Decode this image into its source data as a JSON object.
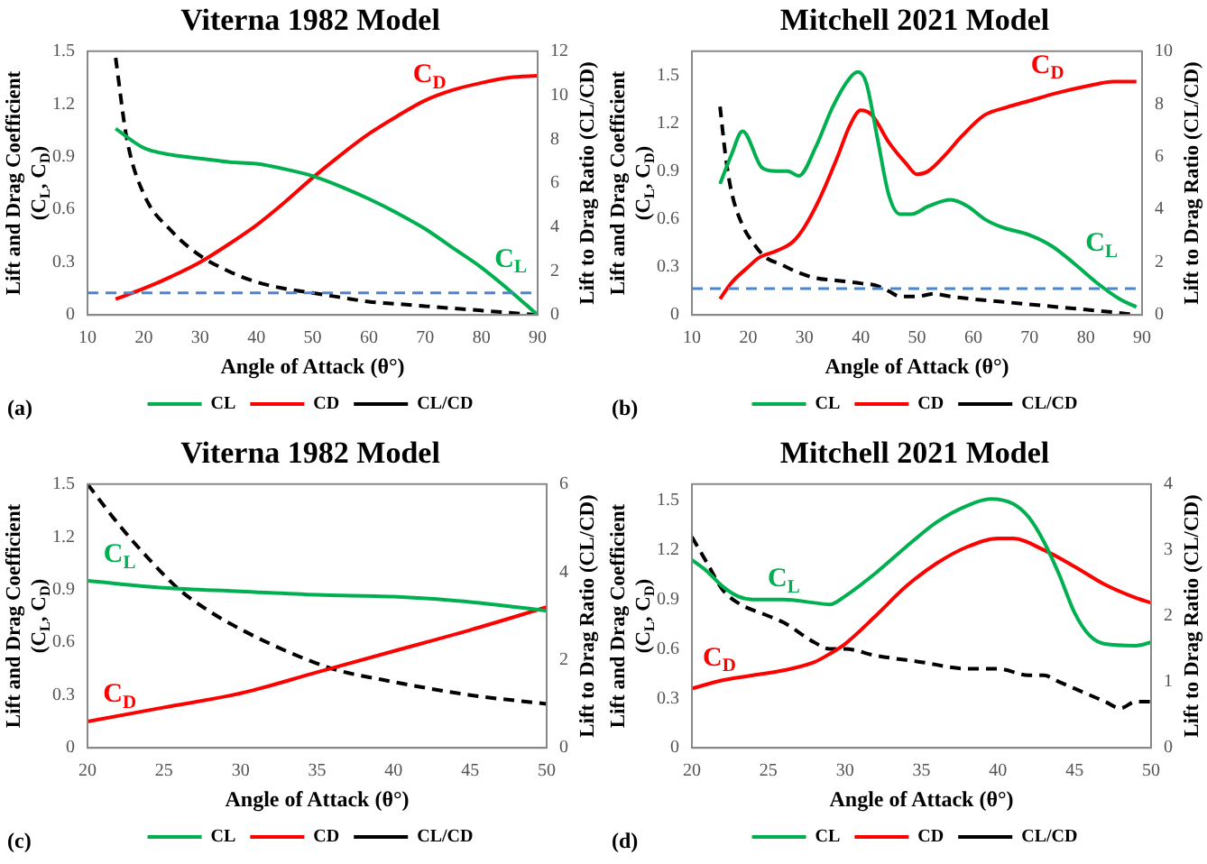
{
  "chart_data": [
    {
      "type": "line",
      "title": "Viterna 1982 Model",
      "xlabel": "Angle of Attack (θ°)",
      "ylabel": "Lift and Drag Coefficient\n(C$_{L}$, C$_{D}$)",
      "y2label": "Lift to Drag Ratio (CL/CD)",
      "xlim": [
        10,
        90
      ],
      "xticks": [
        10,
        20,
        30,
        40,
        50,
        60,
        70,
        80,
        90
      ],
      "ylim": [
        0,
        1.5
      ],
      "yticks": [
        0,
        0.3,
        0.6,
        0.9,
        1.2,
        1.5
      ],
      "y2lim": [
        0,
        12
      ],
      "y2ticks": [
        0,
        2,
        4,
        6,
        8,
        10,
        12
      ],
      "legend": "bottom",
      "marker": "none",
      "ref_lines": [
        {
          "axis": "y2",
          "value": 1,
          "color": "#4a86d0",
          "line_style": "dashed"
        }
      ],
      "annotations": [
        "C$_{L}$",
        "C$_{D}$",
        "(a)"
      ],
      "series": [
        {
          "name": "CL",
          "color": "#00b050",
          "line_style": "solid",
          "x": [
            15,
            20,
            25,
            30,
            35,
            40,
            45,
            50,
            55,
            60,
            65,
            70,
            75,
            80,
            85,
            90
          ],
          "values": [
            1.06,
            0.95,
            0.91,
            0.89,
            0.87,
            0.86,
            0.83,
            0.79,
            0.73,
            0.66,
            0.58,
            0.49,
            0.38,
            0.27,
            0.14,
            0
          ]
        },
        {
          "name": "CD",
          "color": "#ff0000",
          "line_style": "solid",
          "x": [
            15,
            20,
            25,
            30,
            35,
            40,
            45,
            50,
            55,
            60,
            65,
            70,
            75,
            80,
            85,
            90
          ],
          "values": [
            0.09,
            0.15,
            0.22,
            0.3,
            0.4,
            0.51,
            0.64,
            0.78,
            0.91,
            1.03,
            1.13,
            1.22,
            1.28,
            1.32,
            1.35,
            1.36
          ]
        },
        {
          "name": "CL/CD",
          "color": "#000000",
          "line_style": "dashed",
          "axis": "y2",
          "x": [
            15,
            17,
            20,
            25,
            30,
            35,
            40,
            45,
            50,
            55,
            60,
            65,
            70,
            75,
            80,
            85,
            90
          ],
          "values": [
            11.7,
            8,
            5.5,
            3.8,
            2.7,
            2,
            1.5,
            1.2,
            1,
            0.8,
            0.6,
            0.5,
            0.4,
            0.3,
            0.2,
            0.1,
            0
          ]
        }
      ]
    },
    {
      "type": "line",
      "title": "Mitchell 2021 Model",
      "xlabel": "Angle of Attack (θ°)",
      "ylabel": "Lift and Drag Coefficient\n(C$_{L}$, C$_{D}$)",
      "y2label": "Lift to Drag Ratio (CL/CD)",
      "xlim": [
        10,
        90
      ],
      "xticks": [
        10,
        20,
        30,
        40,
        50,
        60,
        70,
        80,
        90
      ],
      "ylim": [
        0,
        1.65
      ],
      "yticks": [
        0,
        0.3,
        0.6,
        0.9,
        1.2,
        1.5
      ],
      "y2lim": [
        0,
        10
      ],
      "y2ticks": [
        0,
        2,
        4,
        6,
        8,
        10
      ],
      "legend": "bottom",
      "marker": "none",
      "ref_lines": [
        {
          "axis": "y2",
          "value": 1,
          "color": "#4a86d0",
          "line_style": "dashed"
        }
      ],
      "annotations": [
        "C$_{L}$",
        "C$_{D}$",
        "(b)"
      ],
      "series": [
        {
          "name": "CL",
          "color": "#00b050",
          "line_style": "solid",
          "x": [
            15,
            17,
            19,
            22.5,
            25,
            27,
            29,
            32,
            35,
            38,
            39.5,
            41,
            43,
            45,
            47,
            49,
            52,
            56,
            59,
            62,
            65,
            70,
            74,
            78,
            82,
            86,
            89
          ],
          "values": [
            0.82,
            1.0,
            1.15,
            0.92,
            0.9,
            0.9,
            0.87,
            1.05,
            1.3,
            1.48,
            1.52,
            1.45,
            1.1,
            0.75,
            0.63,
            0.63,
            0.68,
            0.72,
            0.68,
            0.6,
            0.55,
            0.5,
            0.43,
            0.32,
            0.2,
            0.1,
            0.05
          ]
        },
        {
          "name": "CD",
          "color": "#ff0000",
          "line_style": "solid",
          "x": [
            15,
            17,
            20,
            22,
            25,
            28,
            30,
            33,
            36,
            38,
            40,
            42,
            45,
            48,
            50,
            52,
            55,
            58,
            62,
            66,
            70,
            75,
            80,
            85,
            89
          ],
          "values": [
            0.1,
            0.2,
            0.3,
            0.36,
            0.4,
            0.46,
            0.55,
            0.75,
            1.0,
            1.18,
            1.28,
            1.25,
            1.08,
            0.95,
            0.88,
            0.9,
            1.0,
            1.12,
            1.25,
            1.3,
            1.34,
            1.39,
            1.43,
            1.46,
            1.46
          ]
        },
        {
          "name": "CL/CD",
          "color": "#000000",
          "line_style": "dashed",
          "axis": "y2",
          "x": [
            15,
            16,
            17,
            19,
            21,
            23,
            26,
            29,
            32,
            36,
            40,
            43,
            45,
            47,
            50,
            53,
            56,
            60,
            65,
            70,
            75,
            80,
            85,
            89
          ],
          "values": [
            7.9,
            6,
            4.7,
            3.4,
            2.7,
            2.2,
            1.9,
            1.6,
            1.4,
            1.3,
            1.2,
            1.1,
            0.9,
            0.7,
            0.7,
            0.8,
            0.7,
            0.6,
            0.5,
            0.4,
            0.3,
            0.2,
            0.1,
            0
          ]
        }
      ]
    },
    {
      "type": "line",
      "title": "Viterna 1982 Model",
      "xlabel": "Angle of Attack (θ°)",
      "ylabel": "Lift and Drag Coefficient\n(C$_{L}$, C$_{D}$)",
      "y2label": "Lift to Drag Ratio (CL/CD)",
      "xlim": [
        20,
        50
      ],
      "xticks": [
        20,
        25,
        30,
        35,
        40,
        45,
        50
      ],
      "ylim": [
        0,
        1.5
      ],
      "yticks": [
        0,
        0.3,
        0.6,
        0.9,
        1.2,
        1.5
      ],
      "y2lim": [
        0,
        6
      ],
      "y2ticks": [
        0,
        2,
        4,
        6
      ],
      "legend": "bottom",
      "marker": "none",
      "annotations": [
        "C$_{L}$",
        "C$_{D}$",
        "(c)"
      ],
      "series": [
        {
          "name": "CL",
          "color": "#00b050",
          "line_style": "solid",
          "x": [
            20,
            25,
            30,
            35,
            40,
            45,
            50
          ],
          "values": [
            0.95,
            0.91,
            0.89,
            0.87,
            0.86,
            0.83,
            0.78
          ]
        },
        {
          "name": "CD",
          "color": "#ff0000",
          "line_style": "solid",
          "x": [
            20,
            25,
            30,
            35,
            40,
            45,
            50
          ],
          "values": [
            0.15,
            0.23,
            0.31,
            0.43,
            0.55,
            0.67,
            0.8
          ]
        },
        {
          "name": "CL/CD",
          "color": "#000000",
          "line_style": "dashed",
          "axis": "y2",
          "x": [
            20,
            22,
            24,
            26,
            28,
            30,
            33,
            36,
            40,
            45,
            50
          ],
          "values": [
            6,
            5.1,
            4.3,
            3.6,
            3.1,
            2.7,
            2.2,
            1.8,
            1.5,
            1.2,
            1
          ]
        }
      ]
    },
    {
      "type": "line",
      "title": "Mitchell 2021 Model",
      "xlabel": "Angle of Attack (θ°)",
      "ylabel": "Lift and Drag Coefficient\n(C$_{L}$, C$_{D}$)",
      "y2label": "Lift to Drag Ratio (CL/CD)",
      "xlim": [
        20,
        50
      ],
      "xticks": [
        20,
        25,
        30,
        35,
        40,
        45,
        50
      ],
      "ylim": [
        0,
        1.6
      ],
      "yticks": [
        0,
        0.3,
        0.6,
        0.9,
        1.2,
        1.5
      ],
      "y2lim": [
        0,
        4
      ],
      "y2ticks": [
        0,
        1,
        2,
        3,
        4
      ],
      "legend": "bottom",
      "marker": "none",
      "annotations": [
        "C$_{L}$",
        "C$_{D}$",
        "(d)"
      ],
      "series": [
        {
          "name": "CL",
          "color": "#00b050",
          "line_style": "solid",
          "x": [
            20,
            21,
            22,
            23,
            24,
            26,
            28,
            29,
            30,
            32,
            34,
            36,
            38,
            39.5,
            41,
            42,
            43,
            44,
            45,
            46,
            47,
            49,
            50
          ],
          "values": [
            1.14,
            1.07,
            0.98,
            0.92,
            0.9,
            0.9,
            0.88,
            0.87,
            0.92,
            1.06,
            1.22,
            1.37,
            1.47,
            1.51,
            1.48,
            1.4,
            1.25,
            1.05,
            0.82,
            0.68,
            0.63,
            0.62,
            0.64
          ]
        },
        {
          "name": "CD",
          "color": "#ff0000",
          "line_style": "solid",
          "x": [
            20,
            22,
            24,
            26,
            28,
            29,
            30,
            32,
            34,
            36,
            38,
            40,
            41,
            43,
            45,
            47,
            49,
            50
          ],
          "values": [
            0.36,
            0.41,
            0.44,
            0.47,
            0.52,
            0.57,
            0.63,
            0.8,
            0.98,
            1.12,
            1.22,
            1.27,
            1.27,
            1.2,
            1.1,
            0.99,
            0.91,
            0.88
          ]
        },
        {
          "name": "CL/CD",
          "color": "#000000",
          "line_style": "dashed",
          "axis": "y2",
          "x": [
            20,
            21,
            22,
            23,
            25,
            26,
            28,
            29,
            30,
            32,
            35,
            38,
            40,
            42,
            43,
            44,
            45,
            46,
            47,
            48,
            49,
            50
          ],
          "values": [
            3.2,
            2.8,
            2.4,
            2.2,
            2.0,
            1.9,
            1.6,
            1.5,
            1.5,
            1.4,
            1.3,
            1.2,
            1.2,
            1.1,
            1.1,
            1.0,
            0.9,
            0.8,
            0.7,
            0.6,
            0.7,
            0.7
          ]
        }
      ]
    }
  ]
}
